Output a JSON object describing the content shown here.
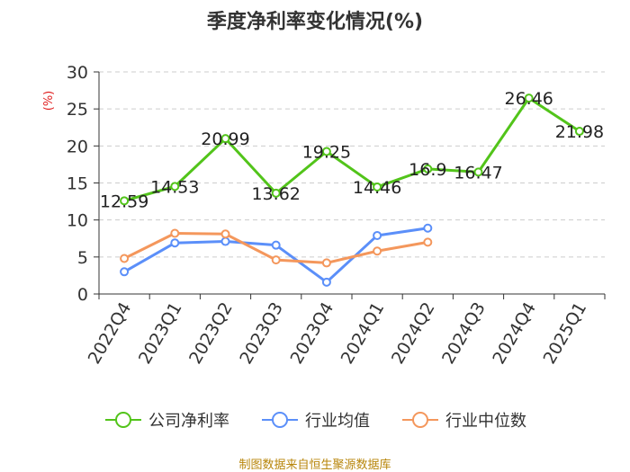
{
  "source_note": "制图数据来自恒生聚源数据库",
  "chart_data": {
    "type": "line",
    "title": "季度净利率变化情况(%)",
    "ylabel": "(%)",
    "xlabel": "",
    "ylim": [
      0,
      30
    ],
    "yticks": [
      0,
      5,
      10,
      15,
      20,
      25,
      30
    ],
    "grid": true,
    "legend_position": "bottom",
    "categories": [
      "2022Q4",
      "2023Q1",
      "2023Q2",
      "2023Q3",
      "2023Q4",
      "2024Q1",
      "2024Q2",
      "2024Q3",
      "2024Q4",
      "2025Q1"
    ],
    "series": [
      {
        "name": "公司净利率",
        "color": "#52c41a",
        "values": [
          12.59,
          14.53,
          20.99,
          13.62,
          19.25,
          14.46,
          16.9,
          16.47,
          26.46,
          21.98
        ],
        "labels": [
          "12.59",
          "14.53",
          "20.99",
          "13.62",
          "19.25",
          "14.46",
          "16.9",
          "16.47",
          "26.46",
          "21.98"
        ]
      },
      {
        "name": "行业均值",
        "color": "#5b8ff9",
        "values": [
          3.0,
          6.9,
          7.1,
          6.6,
          1.6,
          7.9,
          8.9,
          null,
          null,
          null
        ]
      },
      {
        "name": "行业中位数",
        "color": "#f4975c",
        "values": [
          4.8,
          8.2,
          8.1,
          4.6,
          4.2,
          5.8,
          7.0,
          null,
          null,
          null
        ]
      }
    ]
  }
}
